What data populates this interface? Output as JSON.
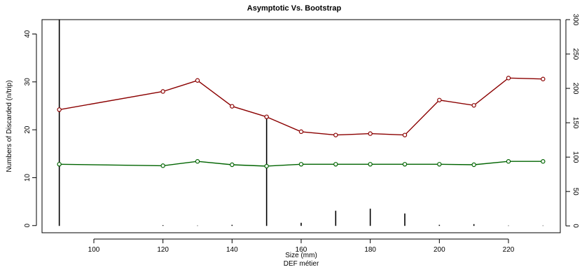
{
  "chart_data": {
    "type": "line",
    "title": "Asymptotic Vs. Bootstrap",
    "xlabel": "Size (mm)",
    "xlabel2": "DEF métier",
    "ylabel": "Numbers of Discarded (n/trip)",
    "xlim": [
      85,
      235
    ],
    "ylim": [
      -1.5,
      43
    ],
    "y2lim": [
      -10,
      300
    ],
    "x_ticks": [
      100,
      120,
      140,
      160,
      180,
      200,
      220
    ],
    "y_ticks": [
      0,
      10,
      20,
      30,
      40
    ],
    "y2_ticks": [
      0,
      50,
      100,
      150,
      200,
      250,
      300
    ],
    "grid": false,
    "x": [
      90,
      120,
      130,
      140,
      150,
      160,
      170,
      180,
      190,
      200,
      210,
      220,
      230
    ],
    "series": [
      {
        "color": "#8b0000",
        "values": [
          24.2,
          28.0,
          30.3,
          24.9,
          22.7,
          19.6,
          18.9,
          19.2,
          18.9,
          26.2,
          25.1,
          30.8,
          30.6
        ]
      },
      {
        "color": "#006400",
        "values": [
          12.8,
          12.5,
          13.4,
          12.7,
          12.4,
          12.8,
          12.8,
          12.8,
          12.8,
          12.8,
          12.7,
          13.4,
          13.4
        ]
      }
    ],
    "spikes": {
      "axis": "right",
      "color": "#000000",
      "values": [
        300,
        1,
        0.5,
        1.5,
        160,
        4.5,
        22,
        25,
        18,
        1.5,
        2.5,
        0.5,
        0.5
      ]
    }
  }
}
